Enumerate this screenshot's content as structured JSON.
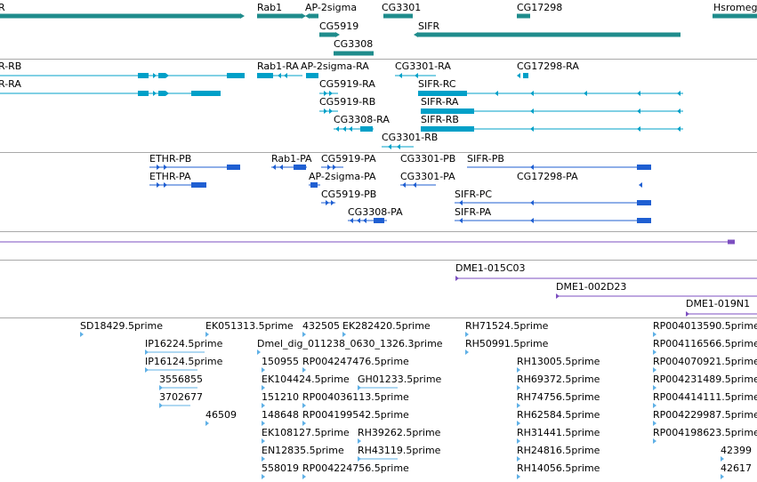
{
  "colors": {
    "gene": "#1f8c8c",
    "transcript_set1": "#00a0c8",
    "transcript_set2": "#1f5fd2",
    "cdna": "#7c4fc0",
    "est": "#5fb0e6",
    "separator": "#a9a9a9"
  },
  "tracks": {
    "genes": {
      "labels": [
        {
          "id": "g-r",
          "text": "R"
        },
        {
          "id": "g-rab1",
          "text": "Rab1"
        },
        {
          "id": "g-ap2sigma",
          "text": "AP-2sigma"
        },
        {
          "id": "g-cg3301",
          "text": "CG3301"
        },
        {
          "id": "g-cg17298",
          "text": "CG17298"
        },
        {
          "id": "g-hsromeg",
          "text": "Hsromeg"
        },
        {
          "id": "g-cg5919",
          "text": "CG5919"
        },
        {
          "id": "g-sifr",
          "text": "SIFR"
        },
        {
          "id": "g-cg3308",
          "text": "CG3308"
        }
      ]
    },
    "transcripts1": {
      "labels": [
        {
          "id": "t1-rb",
          "text": "R-RB"
        },
        {
          "id": "t1-ra",
          "text": "R-RA"
        },
        {
          "id": "t1-rab1ra",
          "text": "Rab1-RA"
        },
        {
          "id": "t1-ap2ra",
          "text": "AP-2sigma-RA"
        },
        {
          "id": "t1-cg3301ra",
          "text": "CG3301-RA"
        },
        {
          "id": "t1-cg17298ra",
          "text": "CG17298-RA"
        },
        {
          "id": "t1-cg5919ra",
          "text": "CG5919-RA"
        },
        {
          "id": "t1-sifrrc",
          "text": "SIFR-RC"
        },
        {
          "id": "t1-cg5919rb",
          "text": "CG5919-RB"
        },
        {
          "id": "t1-sifrra",
          "text": "SIFR-RA"
        },
        {
          "id": "t1-cg3308ra",
          "text": "CG3308-RA"
        },
        {
          "id": "t1-sifrrb",
          "text": "SIFR-RB"
        },
        {
          "id": "t1-cg3301rb",
          "text": "CG3301-RB"
        }
      ]
    },
    "transcripts2": {
      "labels": [
        {
          "id": "t2-ethrpb",
          "text": "ETHR-PB"
        },
        {
          "id": "t2-rab1pa",
          "text": "Rab1-PA"
        },
        {
          "id": "t2-cg5919pa",
          "text": "CG5919-PA"
        },
        {
          "id": "t2-cg3301pb",
          "text": "CG3301-PB"
        },
        {
          "id": "t2-sifrpb",
          "text": "SIFR-PB"
        },
        {
          "id": "t2-ethrpa",
          "text": "ETHR-PA"
        },
        {
          "id": "t2-ap2pa",
          "text": "AP-2sigma-PA"
        },
        {
          "id": "t2-cg3301pa",
          "text": "CG3301-PA"
        },
        {
          "id": "t2-cg17298pa",
          "text": "CG17298-PA"
        },
        {
          "id": "t2-cg5919pb",
          "text": "CG5919-PB"
        },
        {
          "id": "t2-sifrpc",
          "text": "SIFR-PC"
        },
        {
          "id": "t2-cg3308pa",
          "text": "CG3308-PA"
        },
        {
          "id": "t2-sifrpa",
          "text": "SIFR-PA"
        }
      ]
    },
    "clones": {
      "labels": [
        {
          "id": "c-015c03",
          "text": "DME1-015C03"
        },
        {
          "id": "c-002d23",
          "text": "DME1-002D23"
        },
        {
          "id": "c-019n1",
          "text": "DME1-019N1"
        }
      ]
    },
    "ests": {
      "labels": [
        {
          "id": "e-sd18429",
          "text": "SD18429.5prime"
        },
        {
          "id": "e-ek051313",
          "text": "EK051313.5prime"
        },
        {
          "id": "e-432505",
          "text": "432505"
        },
        {
          "id": "e-ek282420",
          "text": "EK282420.5prime"
        },
        {
          "id": "e-rh71524",
          "text": "RH71524.5prime"
        },
        {
          "id": "e-rp004013590",
          "text": "RP004013590.5prime"
        },
        {
          "id": "e-ip16224",
          "text": "IP16224.5prime"
        },
        {
          "id": "e-dmel",
          "text": "Dmel_dig_011238_0630_1326.3prime"
        },
        {
          "id": "e-rh50991",
          "text": "RH50991.5prime"
        },
        {
          "id": "e-rp004116566",
          "text": "RP004116566.5prime"
        },
        {
          "id": "e-ip16124",
          "text": "IP16124.5prime"
        },
        {
          "id": "e-150955",
          "text": "150955"
        },
        {
          "id": "e-rp004247476",
          "text": "RP004247476.5prime"
        },
        {
          "id": "e-rh13005",
          "text": "RH13005.5prime"
        },
        {
          "id": "e-rp004070921",
          "text": "RP004070921.5prime"
        },
        {
          "id": "e-3556855",
          "text": "3556855"
        },
        {
          "id": "e-ek104424",
          "text": "EK104424.5prime"
        },
        {
          "id": "e-gh01233",
          "text": "GH01233.5prime"
        },
        {
          "id": "e-rh69372",
          "text": "RH69372.5prime"
        },
        {
          "id": "e-rp004231489",
          "text": "RP004231489.5prime"
        },
        {
          "id": "e-3702677",
          "text": "3702677"
        },
        {
          "id": "e-151210",
          "text": "151210"
        },
        {
          "id": "e-rp004036113",
          "text": "RP004036113.5prime"
        },
        {
          "id": "e-rh74756",
          "text": "RH74756.5prime"
        },
        {
          "id": "e-rp004414111",
          "text": "RP004414111.5prime"
        },
        {
          "id": "e-46509",
          "text": "46509"
        },
        {
          "id": "e-148648",
          "text": "148648"
        },
        {
          "id": "e-rp004199542",
          "text": "RP004199542.5prime"
        },
        {
          "id": "e-rh62584",
          "text": "RH62584.5prime"
        },
        {
          "id": "e-rp004229987",
          "text": "RP004229987.5prime"
        },
        {
          "id": "e-ek108127",
          "text": "EK108127.5prime"
        },
        {
          "id": "e-rh39262",
          "text": "RH39262.5prime"
        },
        {
          "id": "e-rh31441",
          "text": "RH31441.5prime"
        },
        {
          "id": "e-rp004198623",
          "text": "RP004198623.5prime"
        },
        {
          "id": "e-en12835",
          "text": "EN12835.5prime"
        },
        {
          "id": "e-rh43119",
          "text": "RH43119.5prime"
        },
        {
          "id": "e-rh24816",
          "text": "RH24816.5prime"
        },
        {
          "id": "e-42399",
          "text": "42399"
        },
        {
          "id": "e-558019",
          "text": "558019"
        },
        {
          "id": "e-rp004224756",
          "text": "RP004224756.5prime"
        },
        {
          "id": "e-rh14056",
          "text": "RH14056.5prime"
        },
        {
          "id": "e-42617",
          "text": "42617"
        }
      ]
    }
  }
}
